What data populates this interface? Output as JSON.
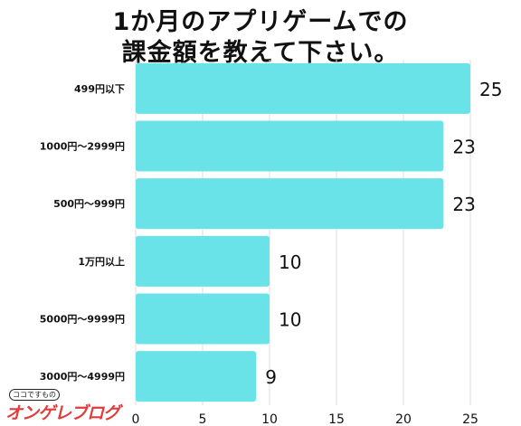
{
  "title_lines": [
    "1か月のアプリゲームでの",
    "課金額を教えて下さい。"
  ],
  "logo": {
    "small_text": "ココですもの",
    "text": "オンゲレブログ"
  },
  "colors": {
    "bar": "#6ae3e8",
    "grid": "#dddddd",
    "text": "#111111"
  },
  "chart_data": {
    "type": "bar",
    "orientation": "horizontal",
    "categories": [
      "499円以下",
      "1000円〜2999円",
      "500円〜999円",
      "1万円以上",
      "5000円〜9999円",
      "3000円〜4999円"
    ],
    "values": [
      25,
      23,
      23,
      10,
      10,
      9
    ],
    "xlim": [
      0,
      25
    ],
    "xticks": [
      0,
      5,
      10,
      15,
      20,
      25
    ],
    "grid": true,
    "title": "1か月のアプリゲームでの課金額を教えて下さい。"
  }
}
